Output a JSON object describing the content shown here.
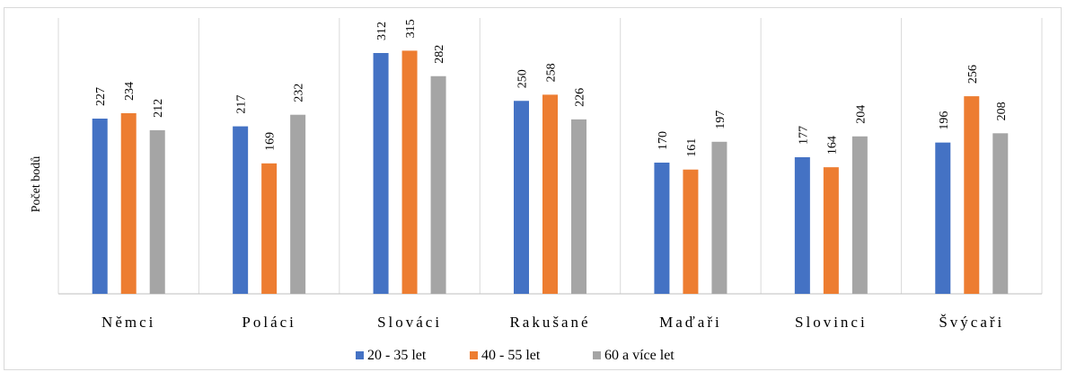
{
  "chart_data": {
    "type": "bar",
    "title": "",
    "xlabel": "",
    "ylabel": "Počet bodů",
    "categories": [
      "Němci",
      "Poláci",
      "Slováci",
      "Rakušané",
      "Maďaři",
      "Slovinci",
      "Švýcaři"
    ],
    "series": [
      {
        "name": "20 - 35 let",
        "color": "#4472c4",
        "values": [
          227,
          217,
          312,
          250,
          170,
          177,
          196
        ]
      },
      {
        "name": "40 - 55 let",
        "color": "#ed7d31",
        "values": [
          234,
          169,
          315,
          258,
          161,
          164,
          256
        ]
      },
      {
        "name": "60 a více let",
        "color": "#a5a5a5",
        "values": [
          212,
          232,
          282,
          226,
          197,
          204,
          208
        ]
      }
    ],
    "ylim": [
      0,
      340
    ],
    "grid": "vertical category separators",
    "legend": "bottom",
    "data_labels": true
  }
}
